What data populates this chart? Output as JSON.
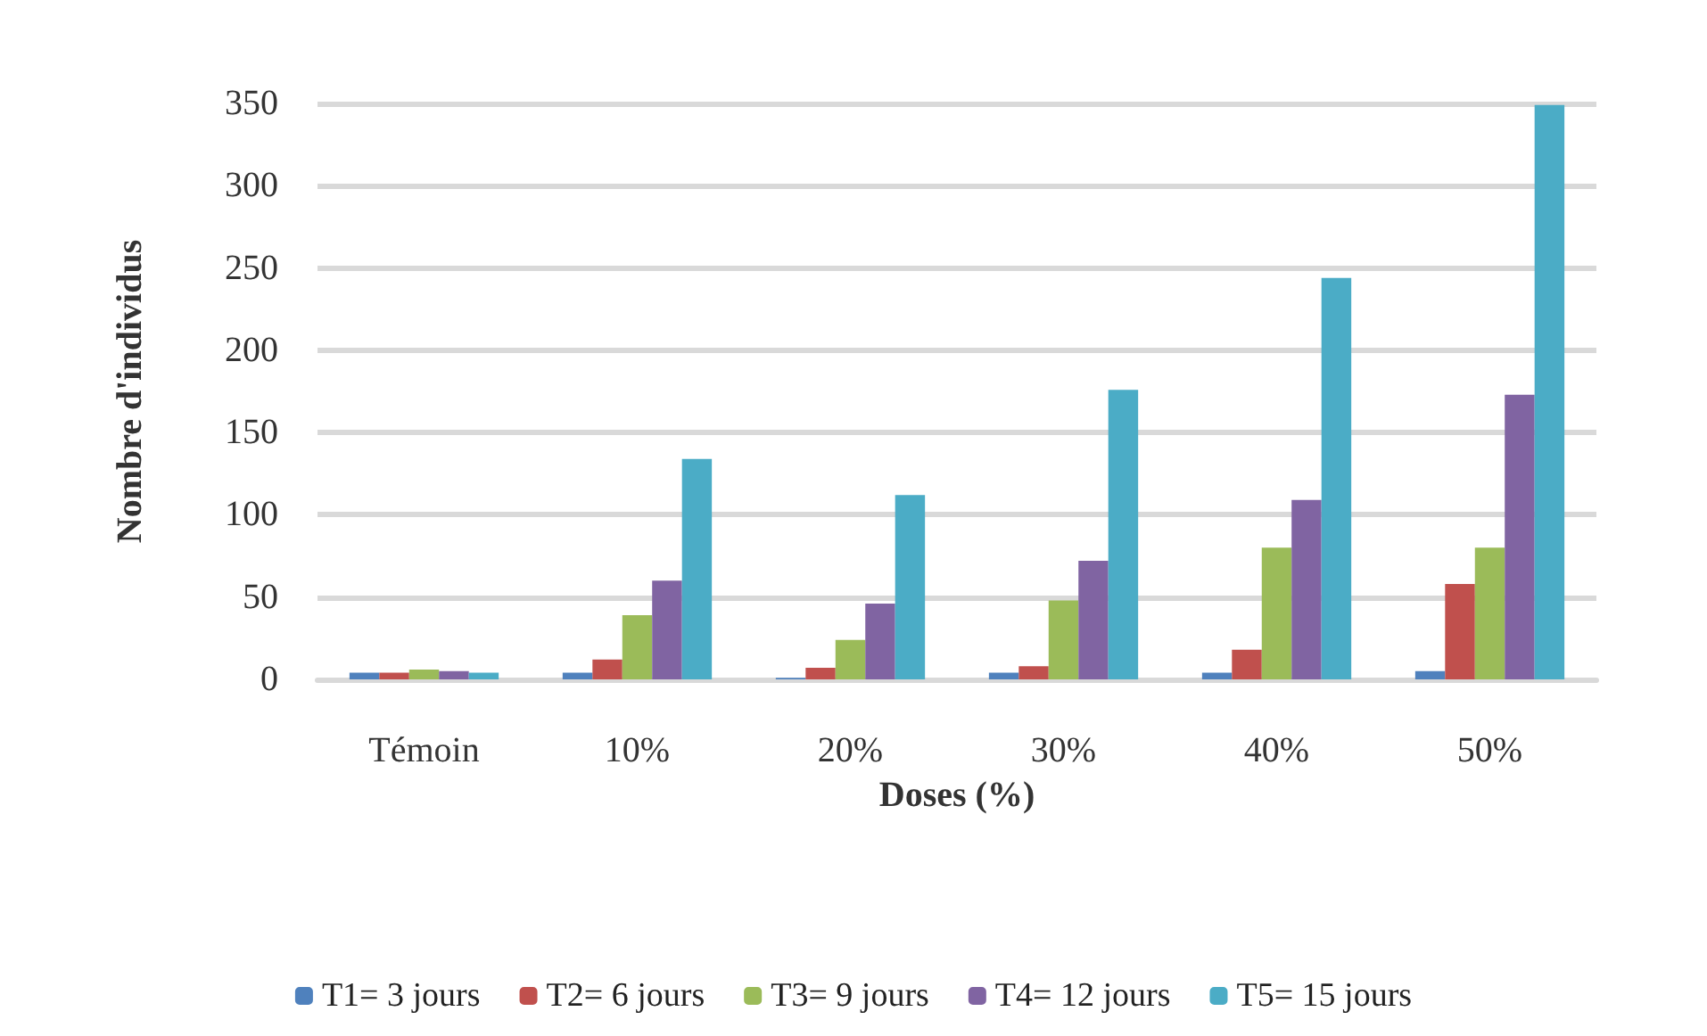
{
  "chart_data": {
    "type": "bar",
    "xlabel": "Doses (%)",
    "ylabel": "Nombre d'individus",
    "categories": [
      "Témoin",
      "10%",
      "20%",
      "30%",
      "40%",
      "50%"
    ],
    "series": [
      {
        "name": "T1= 3 jours",
        "color": "#4f81bd",
        "values": [
          4,
          4,
          1,
          4,
          4,
          5
        ]
      },
      {
        "name": "T2= 6 jours",
        "color": "#c0504d",
        "values": [
          4,
          12,
          7,
          8,
          18,
          58
        ]
      },
      {
        "name": "T3= 9 jours",
        "color": "#9bbb59",
        "values": [
          6,
          39,
          24,
          48,
          80,
          80
        ]
      },
      {
        "name": "T4= 12 jours",
        "color": "#8064a2",
        "values": [
          5,
          60,
          46,
          72,
          109,
          173
        ]
      },
      {
        "name": "T5= 15 jours",
        "color": "#4bacc6",
        "values": [
          4,
          134,
          112,
          176,
          244,
          349
        ]
      }
    ],
    "ylim": [
      0,
      350
    ],
    "yticks": [
      0,
      50,
      100,
      150,
      200,
      250,
      300,
      350
    ],
    "grid": "y",
    "legend": "bottom"
  }
}
